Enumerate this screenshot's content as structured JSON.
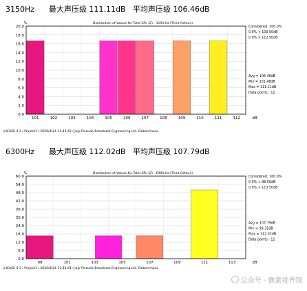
{
  "charts": [
    {
      "heading": "3150Hz      最大声压级 111.11dB   平均声压级 106.46dB",
      "chart_data": {
        "type": "bar",
        "title": "Distribution of Values for Total SPL (Z) - 3150 Hz (Third Octave)",
        "ylabel": "%",
        "xlabel": "dB",
        "x_start": 101,
        "x_end": 112,
        "x_step": 1,
        "x_ticks": [
          "101",
          "102",
          "103",
          "104",
          "105",
          "106",
          "107",
          "108",
          "109",
          "110",
          "111",
          "112"
        ],
        "y_ticks": [
          "0.0",
          "2.0",
          "4.0",
          "6.0",
          "8.0",
          "10.0",
          "12.0",
          "14.0",
          "16.0",
          "18.0",
          "20.0"
        ],
        "ylim": [
          0,
          20
        ],
        "bars": [
          {
            "x": 101,
            "value": 16.7,
            "color": "#e8177f"
          },
          {
            "x": 105,
            "value": 16.7,
            "color": "#ff33cc"
          },
          {
            "x": 106,
            "value": 16.7,
            "color": "#ff338a"
          },
          {
            "x": 107,
            "value": 16.7,
            "color": "#ff6a86"
          },
          {
            "x": 109,
            "value": 16.7,
            "color": "#ffa066"
          },
          {
            "x": 111,
            "value": 16.7,
            "color": "#ffee22"
          }
        ],
        "side_top": [
          "Considered: 100.0%",
          "0.0% < 100.50dB",
          "0.0% > 112.50dB"
        ],
        "side_bottom": [
          "Avg = 106.46dB",
          "Min = 101.48dB",
          "Max = 111.11dB",
          "Data points : 12"
        ],
        "footer": "(c)EASE 4.3  / Project1  / 2020/4/24 11:43:42 / jaly Picaudo Broadcast Engineering Ltd. Debenimaru"
      }
    },
    {
      "heading": "6300Hz      最大声压级 112.02dB   平均声压级 107.79dB",
      "chart_data": {
        "type": "bar",
        "title": "Distribution of Values for Total SPL (Z) - 6300 Hz (Third Octave)",
        "ylabel": "%",
        "xlabel": "dB",
        "x_start": 99,
        "x_end": 113,
        "x_step": 2,
        "x_ticks": [
          "99",
          "101",
          "103",
          "105",
          "107",
          "109",
          "111",
          "113"
        ],
        "y_ticks": [
          "0.0",
          "6.0",
          "12.0",
          "18.0",
          "24.0",
          "30.0",
          "36.0",
          "42.0",
          "48.0",
          "54.0",
          "60.0"
        ],
        "ylim": [
          0,
          60
        ],
        "bars": [
          {
            "x": 99,
            "value": 16.7,
            "color": "#e8177f"
          },
          {
            "x": 104,
            "value": 16.7,
            "color": "#ff22dd"
          },
          {
            "x": 107,
            "value": 16.7,
            "color": "#ff8866"
          },
          {
            "x": 111,
            "value": 50.0,
            "color": "#ffff22"
          }
        ],
        "side_top": [
          "Considered: 100.0%",
          "0.0% < 98.50dB",
          "0.0% > 113.50dB"
        ],
        "side_bottom": [
          "Avg = 107.79dB",
          "Min = 99.31dB",
          "Max = 112.02dB",
          "Data points : 12"
        ],
        "footer": "(c)EASE 4.3  / Project1  / 2020/4/24 11:44:41 / jaly Picaudo Broadcast Engineering Ltd. Debenimaru"
      }
    }
  ],
  "watermark": "公众号 · 像素视界观"
}
